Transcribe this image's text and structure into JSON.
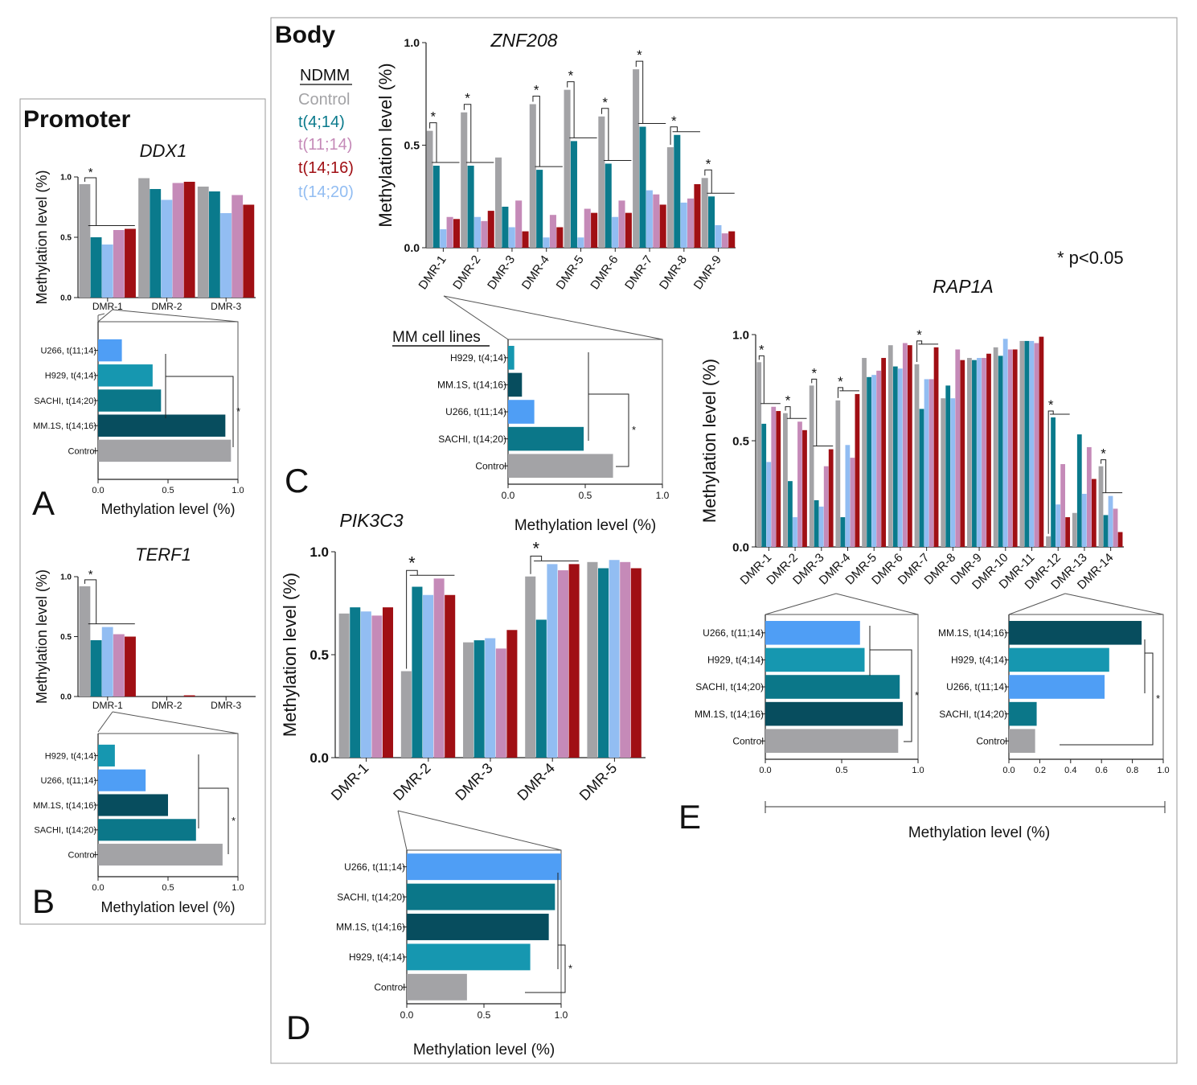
{
  "colors": {
    "control": "#a3a3a6",
    "t4_14": "#0a7a8c",
    "t11_14": "#c58ab8",
    "t14_16": "#a00f14",
    "t14_20": "#92bdf2",
    "cl_u266": "#4f9ef5",
    "cl_h929": "#1697b0",
    "cl_sachi": "#0b7789",
    "cl_mm1s": "#074d5e",
    "cl_control": "#a3a3a6",
    "frame": "#9a9a9a"
  },
  "labels": {
    "promoter_title": "Promoter",
    "body_title": "Body",
    "pvalue": "* p<0.05",
    "panel_a": "A",
    "panel_b": "B",
    "panel_c": "C",
    "panel_d": "D",
    "panel_e": "E",
    "legend_title": "NDMM",
    "legend_items": [
      "Control",
      "t(4;14)",
      "t(11;14)",
      "t(14;16)",
      "t(14;20)"
    ],
    "mm_cell_lines": "MM cell lines",
    "y_axis_label": "Methylation level (%)",
    "e_shared_xlabel": "Methylation level (%)",
    "star": "*"
  },
  "chart_data": [
    {
      "id": "ddx1",
      "type": "bar",
      "title": "DDX1",
      "ylabel": "Methylation level (%)",
      "ylim": [
        0,
        1
      ],
      "yticks": [
        "0.0",
        "0.5",
        "1.0"
      ],
      "categories": [
        "DMR-1",
        "DMR-2",
        "DMR-3"
      ],
      "series": [
        {
          "name": "Control",
          "values": [
            0.94,
            0.99,
            0.92
          ]
        },
        {
          "name": "t(4;14)",
          "values": [
            0.5,
            0.9,
            0.88
          ]
        },
        {
          "name": "t(14;20)",
          "values": [
            0.44,
            0.81,
            0.7
          ]
        },
        {
          "name": "t(11;14)",
          "values": [
            0.56,
            0.95,
            0.85
          ]
        },
        {
          "name": "t(14;16)",
          "values": [
            0.57,
            0.96,
            0.77
          ]
        }
      ],
      "significance": [
        "*",
        "",
        ""
      ]
    },
    {
      "id": "ddx1_cl",
      "type": "barh",
      "xlabel": "Methylation level (%)",
      "xlim": [
        0,
        1
      ],
      "xticks": [
        "0.0",
        "0.5",
        "1.0"
      ],
      "categories": [
        "U266, t(11;14)",
        "H929, t(4;14)",
        "SACHI, t(14;20)",
        "MM.1S, t(14;16)",
        "Control"
      ],
      "values": [
        0.17,
        0.39,
        0.45,
        0.91,
        0.95
      ],
      "significance": "*"
    },
    {
      "id": "terf1",
      "type": "bar",
      "title": "TERF1",
      "ylabel": "Methylation level (%)",
      "ylim": [
        0,
        1
      ],
      "yticks": [
        "0.0",
        "0.5",
        "1.0"
      ],
      "categories": [
        "DMR-1",
        "DMR-2",
        "DMR-3"
      ],
      "series": [
        {
          "name": "Control",
          "values": [
            0.92,
            0.0,
            0.0
          ]
        },
        {
          "name": "t(4;14)",
          "values": [
            0.47,
            0.0,
            0.0
          ]
        },
        {
          "name": "t(14;20)",
          "values": [
            0.58,
            0.0,
            0.0
          ]
        },
        {
          "name": "t(11;14)",
          "values": [
            0.52,
            0.0,
            0.0
          ]
        },
        {
          "name": "t(14;16)",
          "values": [
            0.5,
            0.01,
            0.0
          ]
        }
      ],
      "significance": [
        "*",
        "",
        ""
      ]
    },
    {
      "id": "terf1_cl",
      "type": "barh",
      "xlabel": "Methylation level (%)",
      "xlim": [
        0,
        1
      ],
      "xticks": [
        "0.0",
        "0.5",
        "1.0"
      ],
      "categories": [
        "H929, t(4;14)",
        "U266, t(11;14)",
        "MM.1S, t(14;16)",
        "SACHI, t(14;20)",
        "Control"
      ],
      "values": [
        0.12,
        0.34,
        0.5,
        0.7,
        0.89
      ],
      "significance": "*"
    },
    {
      "id": "znf208",
      "type": "bar",
      "title": "ZNF208",
      "ylabel": "Methylation level (%)",
      "ylim": [
        0,
        1
      ],
      "yticks": [
        "0.0",
        "0.5",
        "1.0"
      ],
      "categories": [
        "DMR-1",
        "DMR-2",
        "DMR-3",
        "DMR-4",
        "DMR-5",
        "DMR-6",
        "DMR-7",
        "DMR-8",
        "DMR-9"
      ],
      "series": [
        {
          "name": "Control",
          "values": [
            0.57,
            0.66,
            0.44,
            0.7,
            0.77,
            0.64,
            0.87,
            0.49,
            0.34
          ]
        },
        {
          "name": "t(4;14)",
          "values": [
            0.4,
            0.4,
            0.2,
            0.38,
            0.52,
            0.41,
            0.59,
            0.55,
            0.25
          ]
        },
        {
          "name": "t(14;20)",
          "values": [
            0.09,
            0.15,
            0.1,
            0.05,
            0.05,
            0.15,
            0.28,
            0.22,
            0.11
          ]
        },
        {
          "name": "t(11;14)",
          "values": [
            0.15,
            0.13,
            0.23,
            0.16,
            0.19,
            0.23,
            0.26,
            0.24,
            0.07
          ]
        },
        {
          "name": "t(14;16)",
          "values": [
            0.14,
            0.18,
            0.08,
            0.1,
            0.17,
            0.17,
            0.21,
            0.31,
            0.08
          ]
        }
      ],
      "significance": [
        "*",
        "*",
        "",
        "*",
        "*",
        "*",
        "*",
        "*",
        "*"
      ]
    },
    {
      "id": "znf208_cl",
      "type": "barh",
      "xlabel": "Methylation level (%)",
      "xlim": [
        0,
        1
      ],
      "xticks": [
        "0.0",
        "0.5",
        "1.0"
      ],
      "categories": [
        "H929, t(4;14)",
        "MM.1S, t(14;16)",
        "U266, t(11;14)",
        "SACHI, t(14;20)",
        "Control"
      ],
      "values": [
        0.04,
        0.09,
        0.17,
        0.49,
        0.68
      ],
      "significance": "*"
    },
    {
      "id": "pik3c3",
      "type": "bar",
      "title": "PIK3C3",
      "ylabel": "Methylation level (%)",
      "ylim": [
        0,
        1
      ],
      "yticks": [
        "0.0",
        "0.5",
        "1.0"
      ],
      "categories": [
        "DMR-1",
        "DMR-2",
        "DMR-3",
        "DMR-4",
        "DMR-5"
      ],
      "series": [
        {
          "name": "Control",
          "values": [
            0.7,
            0.42,
            0.56,
            0.88,
            0.95
          ]
        },
        {
          "name": "t(4;14)",
          "values": [
            0.73,
            0.83,
            0.57,
            0.67,
            0.92
          ]
        },
        {
          "name": "t(14;20)",
          "values": [
            0.71,
            0.79,
            0.58,
            0.94,
            0.96
          ]
        },
        {
          "name": "t(11;14)",
          "values": [
            0.69,
            0.87,
            0.53,
            0.91,
            0.95
          ]
        },
        {
          "name": "t(14;16)",
          "values": [
            0.73,
            0.79,
            0.62,
            0.94,
            0.92
          ]
        }
      ],
      "significance": [
        "",
        "*",
        "",
        "*",
        ""
      ]
    },
    {
      "id": "pik3c3_cl",
      "type": "barh",
      "xlabel": "Methylation level (%)",
      "xlim": [
        0,
        1
      ],
      "xticks": [
        "0.0",
        "0.5",
        "1.0"
      ],
      "categories": [
        "U266, t(11;14)",
        "SACHI, t(14;20)",
        "MM.1S, t(14;16)",
        "H929, t(4;14)",
        "Control"
      ],
      "values": [
        1.0,
        0.96,
        0.92,
        0.8,
        0.39
      ],
      "significance": "*"
    },
    {
      "id": "rap1a",
      "type": "bar",
      "title": "RAP1A",
      "ylabel": "Methylation level (%)",
      "ylim": [
        0,
        1
      ],
      "yticks": [
        "0.0",
        "0.5",
        "1.0"
      ],
      "categories": [
        "DMR-1",
        "DMR-2",
        "DMR-3",
        "DMR-4",
        "DMR-5",
        "DMR-6",
        "DMR-7",
        "DMR-8",
        "DMR-9",
        "DMR-10",
        "DMR-11",
        "DMR-12",
        "DMR-13",
        "DMR-14"
      ],
      "series": [
        {
          "name": "Control",
          "values": [
            0.87,
            0.63,
            0.76,
            0.69,
            0.89,
            0.95,
            0.86,
            0.7,
            0.89,
            0.94,
            0.97,
            0.05,
            0.16,
            0.38
          ]
        },
        {
          "name": "t(4;14)",
          "values": [
            0.58,
            0.31,
            0.22,
            0.14,
            0.8,
            0.85,
            0.65,
            0.76,
            0.88,
            0.9,
            0.97,
            0.61,
            0.53,
            0.15
          ]
        },
        {
          "name": "t(14;20)",
          "values": [
            0.4,
            0.14,
            0.19,
            0.48,
            0.81,
            0.84,
            0.79,
            0.7,
            0.89,
            0.98,
            0.97,
            0.2,
            0.25,
            0.24
          ]
        },
        {
          "name": "t(11;14)",
          "values": [
            0.66,
            0.59,
            0.38,
            0.42,
            0.83,
            0.96,
            0.79,
            0.93,
            0.89,
            0.93,
            0.96,
            0.39,
            0.47,
            0.18
          ]
        },
        {
          "name": "t(14;16)",
          "values": [
            0.64,
            0.55,
            0.46,
            0.72,
            0.89,
            0.95,
            0.94,
            0.88,
            0.91,
            0.93,
            0.99,
            0.14,
            0.32,
            0.07
          ]
        }
      ],
      "significance": [
        "*",
        "*",
        "*",
        "*",
        "",
        "",
        "*",
        "",
        "",
        "",
        "",
        "*",
        "",
        "*"
      ]
    },
    {
      "id": "rap1a_cl1",
      "type": "barh",
      "xlim": [
        0,
        1
      ],
      "xticks": [
        "0.0",
        "0.5",
        "1.0"
      ],
      "categories": [
        "U266, t(11;14)",
        "H929, t(4;14)",
        "SACHI, t(14;20)",
        "MM.1S, t(14;16)",
        "Control"
      ],
      "values": [
        0.62,
        0.65,
        0.88,
        0.9,
        0.87
      ],
      "significance": "*"
    },
    {
      "id": "rap1a_cl2",
      "type": "barh",
      "xlim": [
        0,
        1
      ],
      "xticks": [
        "0.0",
        "0.2",
        "0.4",
        "0.6",
        "0.8",
        "1.0"
      ],
      "categories": [
        "MM.1S, t(14;16)",
        "H929, t(4;14)",
        "U266, t(11;14)",
        "SACHI, t(14;20)",
        "Control"
      ],
      "values": [
        0.86,
        0.65,
        0.62,
        0.18,
        0.17
      ],
      "significance": "*"
    }
  ]
}
